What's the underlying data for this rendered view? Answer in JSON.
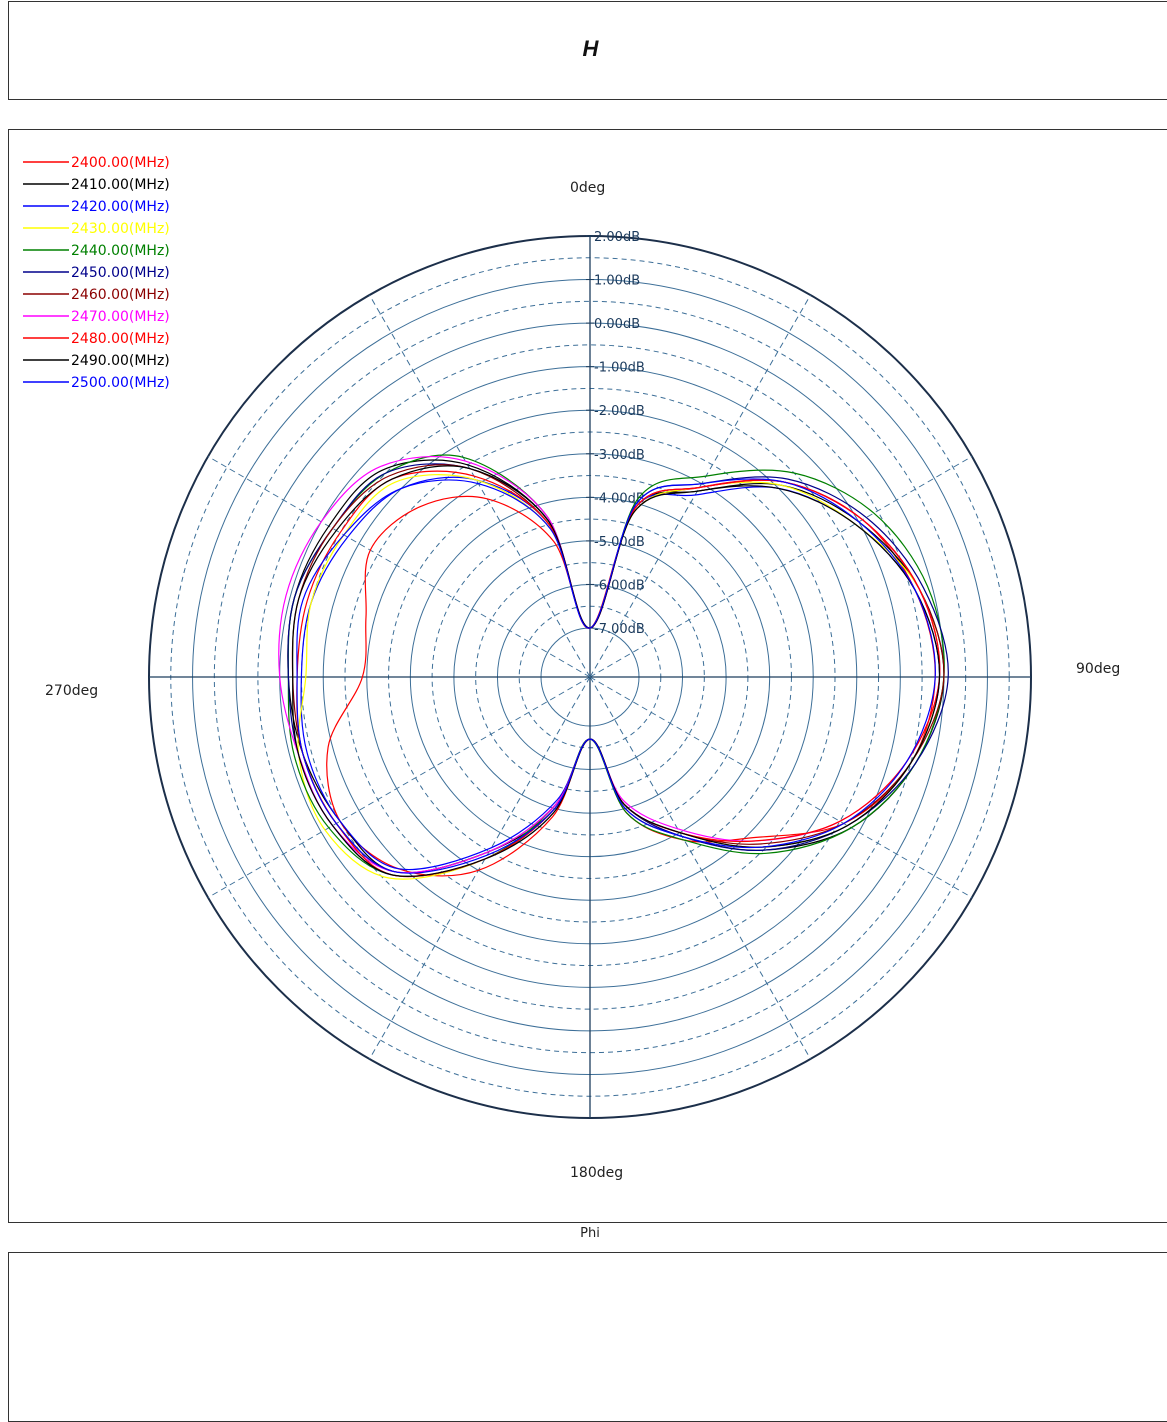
{
  "title": "H",
  "footer_label": "Phi",
  "chart_data": {
    "type": "polar-line",
    "angle_labels": [
      "0deg",
      "90deg",
      "180deg",
      "270deg"
    ],
    "radial_tick_labels": [
      "2.00dB",
      "1.00dB",
      "0.00dB",
      "-1.00dB",
      "-2.00dB",
      "-3.00dB",
      "-4.00dB",
      "-5.00dB",
      "-6.00dB",
      "-7.00dB"
    ],
    "rlim": [
      -7,
      2
    ],
    "angle_direction": "clockwise",
    "zero_location": "top",
    "grid": true,
    "legend_position": "top-left",
    "angles_deg": [
      0,
      15,
      30,
      45,
      60,
      75,
      90,
      105,
      120,
      135,
      150,
      165,
      180,
      195,
      210,
      225,
      240,
      255,
      270,
      285,
      300,
      315,
      330,
      345
    ],
    "series": [
      {
        "name": "2400.00(MHz)",
        "color": "#ff0000",
        "values": [
          -7.0,
          -4.2,
          -3.1,
          -1.8,
          -0.9,
          -0.4,
          -0.2,
          -0.5,
          -1.4,
          -2.9,
          -3.8,
          -4.9,
          -6.7,
          -4.8,
          -3.0,
          -1.9,
          -1.5,
          -1.9,
          -2.9,
          -2.8,
          -2.3,
          -2.6,
          -3.4,
          -4.9
        ]
      },
      {
        "name": "2410.00(MHz)",
        "color": "#000000",
        "values": [
          -7.0,
          -4.1,
          -3.2,
          -1.9,
          -1.0,
          -0.3,
          0.0,
          -0.4,
          -1.2,
          -2.5,
          -3.9,
          -5.0,
          -6.7,
          -5.0,
          -3.5,
          -1.8,
          -1.5,
          -1.3,
          -1.2,
          -1.1,
          -1.2,
          -1.4,
          -2.5,
          -4.4
        ]
      },
      {
        "name": "2420.00(MHz)",
        "color": "#0000ff",
        "values": [
          -7.0,
          -4.1,
          -3.3,
          -2.0,
          -1.1,
          -0.4,
          -0.1,
          -0.5,
          -1.3,
          -2.6,
          -4.0,
          -5.1,
          -6.7,
          -5.2,
          -3.6,
          -1.9,
          -1.5,
          -1.4,
          -1.5,
          -1.5,
          -1.7,
          -2.0,
          -2.9,
          -4.5
        ]
      },
      {
        "name": "2430.00(MHz)",
        "color": "#ffff00",
        "values": [
          -7.0,
          -4.2,
          -3.1,
          -1.9,
          -1.1,
          -0.3,
          -0.1,
          -0.5,
          -1.3,
          -2.6,
          -4.0,
          -5.1,
          -6.7,
          -5.1,
          -3.3,
          -1.6,
          -1.1,
          -1.2,
          -1.6,
          -1.5,
          -1.6,
          -1.8,
          -2.9,
          -4.6
        ]
      },
      {
        "name": "2440.00(MHz)",
        "color": "#008000",
        "values": [
          -7.0,
          -3.9,
          -2.8,
          -1.5,
          -0.6,
          -0.1,
          0.0,
          -0.4,
          -1.2,
          -2.4,
          -3.8,
          -4.9,
          -6.7,
          -5.1,
          -3.3,
          -1.7,
          -1.2,
          -1.1,
          -1.2,
          -1.1,
          -1.3,
          -1.5,
          -2.3,
          -4.3
        ]
      },
      {
        "name": "2450.00(MHz)",
        "color": "#00008b",
        "values": [
          -7.0,
          -4.0,
          -3.0,
          -1.7,
          -0.8,
          -0.2,
          0.1,
          -0.4,
          -1.3,
          -2.5,
          -3.9,
          -5.1,
          -6.7,
          -5.0,
          -3.3,
          -1.7,
          -1.3,
          -1.2,
          -1.2,
          -1.1,
          -1.3,
          -1.5,
          -2.6,
          -4.4
        ]
      },
      {
        "name": "2460.00(MHz)",
        "color": "#8b0000",
        "values": [
          -7.0,
          -4.1,
          -3.1,
          -1.8,
          -0.9,
          -0.3,
          0.0,
          -0.5,
          -1.4,
          -2.7,
          -4.0,
          -5.1,
          -6.7,
          -5.1,
          -3.5,
          -1.8,
          -1.4,
          -1.3,
          -1.3,
          -1.2,
          -1.3,
          -1.6,
          -2.6,
          -4.5
        ]
      },
      {
        "name": "2470.00(MHz)",
        "color": "#ff00ff",
        "values": [
          -7.0,
          -4.1,
          -3.1,
          -1.8,
          -0.9,
          -0.3,
          -0.1,
          -0.6,
          -1.5,
          -2.8,
          -4.1,
          -5.2,
          -6.7,
          -5.1,
          -3.5,
          -1.8,
          -1.3,
          -1.2,
          -1.0,
          -0.9,
          -1.0,
          -1.3,
          -2.4,
          -4.3
        ]
      },
      {
        "name": "2480.00(MHz)",
        "color": "#ff0000",
        "values": [
          -7.0,
          -4.1,
          -3.1,
          -1.8,
          -0.9,
          -0.3,
          -0.1,
          -0.6,
          -1.5,
          -2.8,
          -4.0,
          -5.1,
          -6.7,
          -5.0,
          -3.3,
          -1.7,
          -1.4,
          -1.3,
          -1.4,
          -1.4,
          -1.5,
          -1.7,
          -2.8,
          -4.5
        ]
      },
      {
        "name": "2490.00(MHz)",
        "color": "#000000",
        "values": [
          -7.0,
          -4.2,
          -3.2,
          -2.0,
          -1.1,
          -0.4,
          -0.1,
          -0.5,
          -1.3,
          -2.6,
          -4.0,
          -5.1,
          -6.7,
          -4.9,
          -3.3,
          -1.7,
          -1.3,
          -1.2,
          -1.3,
          -1.2,
          -1.4,
          -1.7,
          -2.6,
          -4.4
        ]
      },
      {
        "name": "2500.00(MHz)",
        "color": "#0000ff",
        "values": [
          -7.0,
          -4.0,
          -3.0,
          -1.8,
          -1.0,
          -0.4,
          -0.2,
          -0.6,
          -1.4,
          -2.6,
          -3.9,
          -5.0,
          -6.7,
          -5.0,
          -3.4,
          -1.8,
          -1.4,
          -1.3,
          -1.4,
          -1.3,
          -1.6,
          -2.0,
          -3.0,
          -4.6
        ]
      }
    ]
  }
}
